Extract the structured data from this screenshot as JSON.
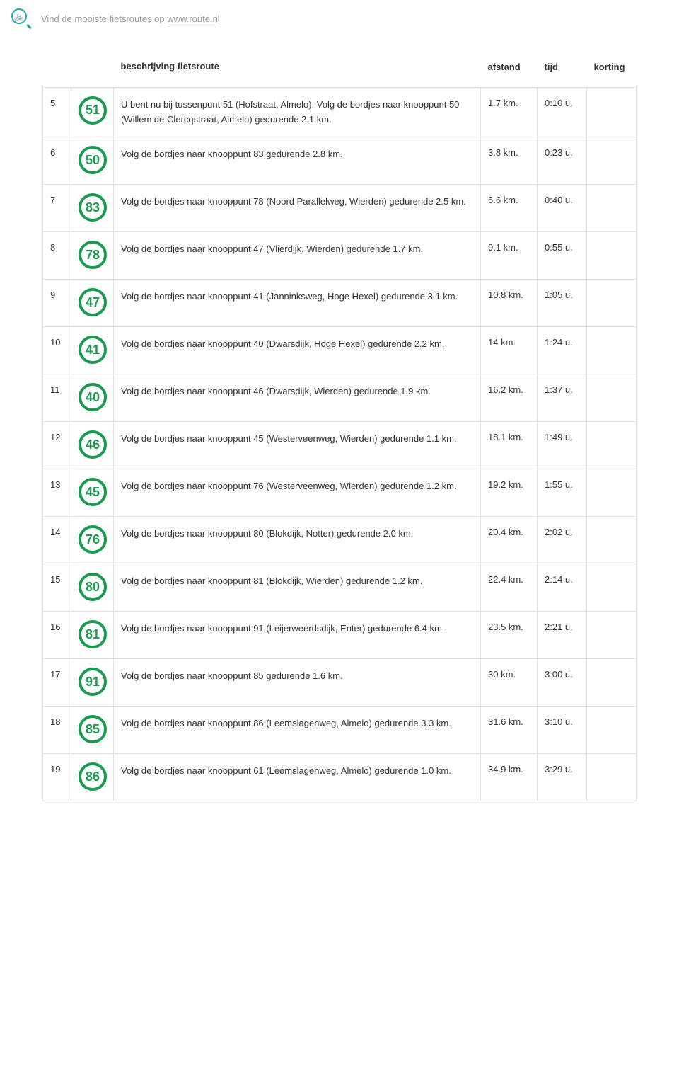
{
  "header": {
    "tagline_prefix": "Vind de mooiste fietsroutes op ",
    "tagline_link": "www.route.nl"
  },
  "columns": {
    "desc": "beschrijving fietsroute",
    "dist": "afstand",
    "time": "tijd",
    "kort": "korting"
  },
  "node_style": {
    "border_color": "#1a9b4f",
    "text_color": "#1a9b4f"
  },
  "rows": [
    {
      "step": "5",
      "node": "51",
      "desc": "U bent nu bij tussenpunt 51 (Hofstraat, Almelo). Volg de bordjes naar knooppunt 50 (Willem de Clercqstraat, Almelo) gedurende 2.1 km.",
      "dist": "1.7 km.",
      "time": "0:10 u."
    },
    {
      "step": "6",
      "node": "50",
      "desc": "Volg de bordjes naar knooppunt 83 gedurende 2.8 km.",
      "dist": "3.8 km.",
      "time": "0:23 u."
    },
    {
      "step": "7",
      "node": "83",
      "desc": "Volg de bordjes naar knooppunt 78 (Noord Parallelweg, Wierden) gedurende 2.5 km.",
      "dist": "6.6 km.",
      "time": "0:40 u."
    },
    {
      "step": "8",
      "node": "78",
      "desc": "Volg de bordjes naar knooppunt 47 (Vlierdijk, Wierden) gedurende 1.7 km.",
      "dist": "9.1 km.",
      "time": "0:55 u."
    },
    {
      "step": "9",
      "node": "47",
      "desc": "Volg de bordjes naar knooppunt 41 (Janninksweg, Hoge Hexel) gedurende 3.1 km.",
      "dist": "10.8 km.",
      "time": "1:05 u."
    },
    {
      "step": "10",
      "node": "41",
      "desc": "Volg de bordjes naar knooppunt 40 (Dwarsdijk, Hoge Hexel) gedurende 2.2 km.",
      "dist": "14 km.",
      "time": "1:24 u."
    },
    {
      "step": "11",
      "node": "40",
      "desc": "Volg de bordjes naar knooppunt 46 (Dwarsdijk, Wierden) gedurende 1.9 km.",
      "dist": "16.2 km.",
      "time": "1:37 u."
    },
    {
      "step": "12",
      "node": "46",
      "desc": "Volg de bordjes naar knooppunt 45 (Westerveenweg, Wierden) gedurende 1.1 km.",
      "dist": "18.1 km.",
      "time": "1:49 u."
    },
    {
      "step": "13",
      "node": "45",
      "desc": "Volg de bordjes naar knooppunt 76 (Westerveenweg, Wierden) gedurende 1.2 km.",
      "dist": "19.2 km.",
      "time": "1:55 u."
    },
    {
      "step": "14",
      "node": "76",
      "desc": "Volg de bordjes naar knooppunt 80 (Blokdijk, Notter) gedurende 2.0 km.",
      "dist": "20.4 km.",
      "time": "2:02 u."
    },
    {
      "step": "15",
      "node": "80",
      "desc": "Volg de bordjes naar knooppunt 81 (Blokdijk, Wierden) gedurende 1.2 km.",
      "dist": "22.4 km.",
      "time": "2:14 u."
    },
    {
      "step": "16",
      "node": "81",
      "desc": "Volg de bordjes naar knooppunt 91 (Leijerweerdsdijk, Enter) gedurende 6.4 km.",
      "dist": "23.5 km.",
      "time": "2:21 u."
    },
    {
      "step": "17",
      "node": "91",
      "desc": "Volg de bordjes naar knooppunt 85 gedurende 1.6 km.",
      "dist": "30 km.",
      "time": "3:00 u."
    },
    {
      "step": "18",
      "node": "85",
      "desc": "Volg de bordjes naar knooppunt 86 (Leemslagenweg, Almelo) gedurende 3.3 km.",
      "dist": "31.6 km.",
      "time": "3:10 u."
    },
    {
      "step": "19",
      "node": "86",
      "desc": "Volg de bordjes naar knooppunt 61 (Leemslagenweg, Almelo) gedurende 1.0 km.",
      "dist": "34.9 km.",
      "time": "3:29 u."
    }
  ]
}
